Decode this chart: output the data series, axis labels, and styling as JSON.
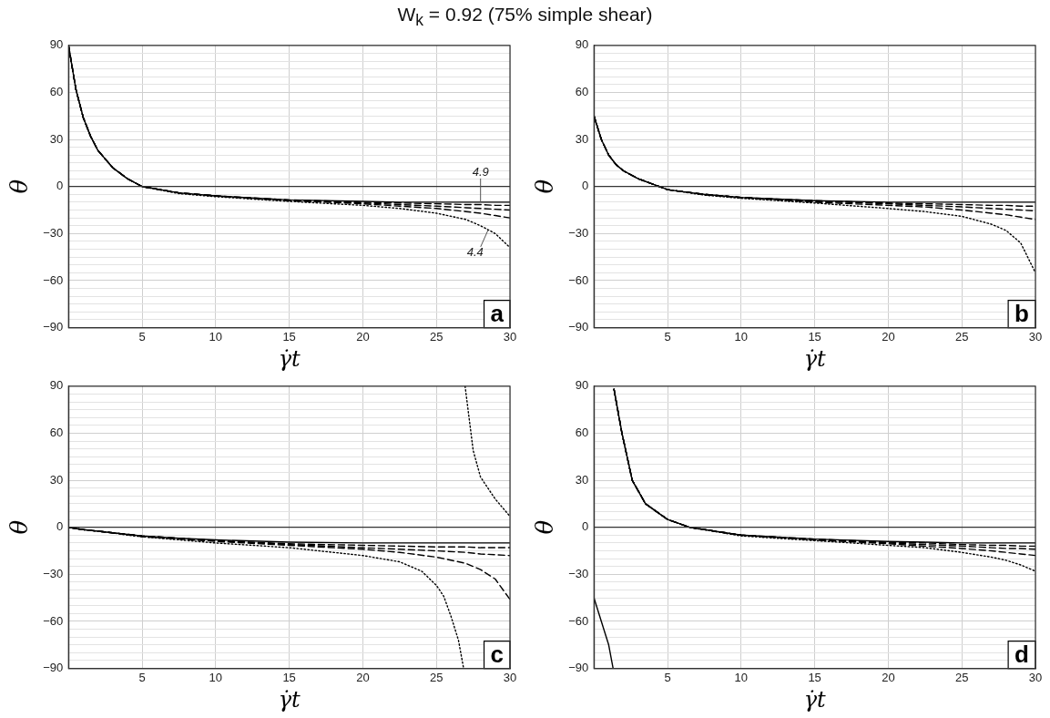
{
  "chart_data": [
    {
      "type": "line",
      "title": "W$_{k}$ = 0.92 (75% simple shear)",
      "xlabel": "γ̇t",
      "ylabel": "θ",
      "xlim": [
        0,
        30
      ],
      "xticks": [
        5,
        10,
        15,
        20,
        25,
        30
      ],
      "ylim": [
        -90,
        90
      ],
      "yticks": [
        {
          "value": -90,
          "label": "−90"
        },
        {
          "value": -85,
          "label": null
        },
        {
          "value": -80,
          "label": null
        },
        {
          "value": -75,
          "label": null
        },
        {
          "value": -70,
          "label": null
        },
        {
          "value": -65,
          "label": null
        },
        {
          "value": -60,
          "label": "−60"
        },
        {
          "value": -55,
          "label": null
        },
        {
          "value": -50,
          "label": null
        },
        {
          "value": -45,
          "label": null
        },
        {
          "value": -40,
          "label": null
        },
        {
          "value": -35,
          "label": null
        },
        {
          "value": -30,
          "label": "−30"
        },
        {
          "value": -25,
          "label": null
        },
        {
          "value": -20,
          "label": null
        },
        {
          "value": -15,
          "label": null
        },
        {
          "value": -10,
          "label": null
        },
        {
          "value": -5,
          "label": null
        },
        0,
        {
          "value": 5,
          "label": null
        },
        {
          "value": 10,
          "label": null
        },
        {
          "value": 15,
          "label": null
        },
        {
          "value": 20,
          "label": null
        },
        {
          "value": 25,
          "label": null
        },
        30,
        {
          "value": 35,
          "label": null
        },
        {
          "value": 40,
          "label": null
        },
        {
          "value": 45,
          "label": null
        },
        {
          "value": 50,
          "label": null
        },
        {
          "value": 55,
          "label": null
        },
        60,
        {
          "value": 65,
          "label": null
        },
        {
          "value": 70,
          "label": null
        },
        {
          "value": 75,
          "label": null
        },
        {
          "value": 80,
          "label": null
        },
        {
          "value": 85,
          "label": null
        },
        90
      ],
      "grid": true,
      "legend": false,
      "marker": "none",
      "ref_lines": [
        {
          "axis": "y",
          "value": 0
        }
      ],
      "annotations": [
        "a",
        {
          "text": "4.9",
          "x": 28,
          "y": -10
        },
        {
          "text": "4.4",
          "x": 28.5,
          "y": -28
        }
      ],
      "x": [
        0,
        0.5,
        1,
        1.5,
        2,
        3,
        4,
        5,
        7.5,
        10,
        15,
        20,
        22.5,
        25,
        27,
        28,
        29,
        30
      ],
      "series": [
        {
          "color": "#000000",
          "line_style": "solid",
          "values": [
            90,
            62,
            44,
            32,
            23,
            12,
            5,
            0,
            -4,
            -6,
            -8.5,
            -9.5,
            -10,
            -10,
            -10,
            -10,
            -10,
            -10
          ]
        },
        {
          "color": "#000000",
          "line_style": "dashed",
          "values": [
            90,
            62,
            44,
            32,
            23,
            12,
            5,
            0,
            -4,
            -6,
            -8.5,
            -10,
            -10.5,
            -11,
            -11.5,
            -11.5,
            -12,
            -12
          ]
        },
        {
          "color": "#000000",
          "line_style": "dashed",
          "values": [
            90,
            62,
            44,
            32,
            23,
            12,
            5,
            0,
            -4,
            -6,
            -9,
            -10.5,
            -11.5,
            -12.5,
            -13.5,
            -14,
            -14.5,
            -15
          ]
        },
        {
          "color": "#000000",
          "line_style": "dashed",
          "values": [
            90,
            62,
            44,
            32,
            23,
            12,
            5,
            0,
            -4,
            -6,
            -9,
            -11,
            -12.5,
            -14,
            -16,
            -17,
            -18.5,
            -20
          ]
        },
        {
          "color": "#000000",
          "line_style": "dotted",
          "values": [
            90,
            62,
            44,
            32,
            23,
            12,
            5,
            0,
            -4.5,
            -6.5,
            -9.5,
            -12,
            -14,
            -17,
            -21,
            -25,
            -30,
            -39
          ]
        }
      ]
    },
    {
      "type": "line",
      "xlabel": "γ̇t",
      "ylabel": "θ",
      "xlim": [
        0,
        30
      ],
      "xticks": [
        5,
        10,
        15,
        20,
        25,
        30
      ],
      "ylim": [
        -90,
        90
      ],
      "yticks": [
        {
          "value": -90,
          "label": "−90"
        },
        {
          "value": -85,
          "label": null
        },
        {
          "value": -80,
          "label": null
        },
        {
          "value": -75,
          "label": null
        },
        {
          "value": -70,
          "label": null
        },
        {
          "value": -65,
          "label": null
        },
        {
          "value": -60,
          "label": "−60"
        },
        {
          "value": -55,
          "label": null
        },
        {
          "value": -50,
          "label": null
        },
        {
          "value": -45,
          "label": null
        },
        {
          "value": -40,
          "label": null
        },
        {
          "value": -35,
          "label": null
        },
        {
          "value": -30,
          "label": "−30"
        },
        {
          "value": -25,
          "label": null
        },
        {
          "value": -20,
          "label": null
        },
        {
          "value": -15,
          "label": null
        },
        {
          "value": -10,
          "label": null
        },
        {
          "value": -5,
          "label": null
        },
        0,
        {
          "value": 5,
          "label": null
        },
        {
          "value": 10,
          "label": null
        },
        {
          "value": 15,
          "label": null
        },
        {
          "value": 20,
          "label": null
        },
        {
          "value": 25,
          "label": null
        },
        30,
        {
          "value": 35,
          "label": null
        },
        {
          "value": 40,
          "label": null
        },
        {
          "value": 45,
          "label": null
        },
        {
          "value": 50,
          "label": null
        },
        {
          "value": 55,
          "label": null
        },
        60,
        {
          "value": 65,
          "label": null
        },
        {
          "value": 70,
          "label": null
        },
        {
          "value": 75,
          "label": null
        },
        {
          "value": 80,
          "label": null
        },
        {
          "value": 85,
          "label": null
        },
        90
      ],
      "grid": true,
      "legend": false,
      "marker": "none",
      "ref_lines": [
        {
          "axis": "y",
          "value": 0
        }
      ],
      "annotations": [
        "b"
      ],
      "x": [
        0,
        0.5,
        1,
        1.5,
        2,
        3,
        4,
        5,
        7.5,
        10,
        15,
        20,
        22.5,
        25,
        27,
        28,
        29,
        30
      ],
      "series": [
        {
          "color": "#000000",
          "line_style": "solid",
          "values": [
            45,
            30,
            20,
            14,
            10,
            5,
            1.5,
            -2,
            -5,
            -7,
            -9,
            -10,
            -10,
            -10,
            -10,
            -10,
            -10,
            -10
          ]
        },
        {
          "color": "#000000",
          "line_style": "dashed",
          "values": [
            45,
            30,
            20,
            14,
            10,
            5,
            1.5,
            -2,
            -5,
            -7,
            -9,
            -10.5,
            -11,
            -11.5,
            -12,
            -12,
            -12.5,
            -12.5
          ]
        },
        {
          "color": "#000000",
          "line_style": "dashed",
          "values": [
            45,
            30,
            20,
            14,
            10,
            5,
            1.5,
            -2,
            -5,
            -7,
            -9.5,
            -11,
            -12,
            -13,
            -14,
            -14.5,
            -15,
            -15.5
          ]
        },
        {
          "color": "#000000",
          "line_style": "dashed",
          "values": [
            45,
            30,
            20,
            14,
            10,
            5,
            1.5,
            -2,
            -5,
            -7,
            -10,
            -12,
            -13,
            -15,
            -17,
            -18,
            -19.5,
            -21
          ]
        },
        {
          "color": "#000000",
          "line_style": "dotted",
          "values": [
            45,
            30,
            20,
            14,
            10,
            5,
            1.5,
            -2,
            -5.5,
            -7.5,
            -10.5,
            -14,
            -16,
            -19,
            -24,
            -28,
            -36,
            -55
          ]
        }
      ]
    },
    {
      "type": "line",
      "xlabel": "γ̇t",
      "ylabel": "θ",
      "xlim": [
        0,
        30
      ],
      "xticks": [
        5,
        10,
        15,
        20,
        25,
        30
      ],
      "ylim": [
        -90,
        90
      ],
      "yticks": [
        {
          "value": -90,
          "label": "−90"
        },
        {
          "value": -85,
          "label": null
        },
        {
          "value": -80,
          "label": null
        },
        {
          "value": -75,
          "label": null
        },
        {
          "value": -70,
          "label": null
        },
        {
          "value": -65,
          "label": null
        },
        {
          "value": -60,
          "label": "−60"
        },
        {
          "value": -55,
          "label": null
        },
        {
          "value": -50,
          "label": null
        },
        {
          "value": -45,
          "label": null
        },
        {
          "value": -40,
          "label": null
        },
        {
          "value": -35,
          "label": null
        },
        {
          "value": -30,
          "label": "−30"
        },
        {
          "value": -25,
          "label": null
        },
        {
          "value": -20,
          "label": null
        },
        {
          "value": -15,
          "label": null
        },
        {
          "value": -10,
          "label": null
        },
        {
          "value": -5,
          "label": null
        },
        0,
        {
          "value": 5,
          "label": null
        },
        {
          "value": 10,
          "label": null
        },
        {
          "value": 15,
          "label": null
        },
        {
          "value": 20,
          "label": null
        },
        {
          "value": 25,
          "label": null
        },
        30,
        {
          "value": 35,
          "label": null
        },
        {
          "value": 40,
          "label": null
        },
        {
          "value": 45,
          "label": null
        },
        {
          "value": 50,
          "label": null
        },
        {
          "value": 55,
          "label": null
        },
        60,
        {
          "value": 65,
          "label": null
        },
        {
          "value": 70,
          "label": null
        },
        {
          "value": 75,
          "label": null
        },
        {
          "value": 80,
          "label": null
        },
        {
          "value": 85,
          "label": null
        },
        90
      ],
      "grid": true,
      "legend": false,
      "marker": "none",
      "ref_lines": [
        {
          "axis": "y",
          "value": 0
        }
      ],
      "annotations": [
        "c"
      ],
      "x": [
        0,
        1,
        2,
        3,
        4,
        5,
        7.5,
        10,
        15,
        20,
        22.5,
        25,
        27,
        28,
        29,
        30
      ],
      "series": [
        {
          "color": "#000000",
          "line_style": "solid",
          "values": [
            0,
            -1.5,
            -2.5,
            -3.5,
            -4.5,
            -5.5,
            -7,
            -8,
            -9.5,
            -10,
            -10,
            -10,
            -10,
            -10,
            -10,
            -10
          ]
        },
        {
          "color": "#000000",
          "line_style": "dashed",
          "values": [
            0,
            -1.5,
            -2.5,
            -3.5,
            -4.5,
            -5.5,
            -7,
            -8.5,
            -10.5,
            -11.5,
            -12,
            -12.5,
            -12.5,
            -13,
            -13,
            -13
          ]
        },
        {
          "color": "#000000",
          "line_style": "dashed",
          "values": [
            0,
            -1.5,
            -2.5,
            -3.5,
            -4.5,
            -5.5,
            -7,
            -8.5,
            -11,
            -13,
            -14,
            -15,
            -16,
            -17,
            -17.5,
            -18
          ]
        },
        {
          "color": "#000000",
          "line_style": "dashed",
          "values": [
            0,
            -1.5,
            -2.5,
            -3.5,
            -4.5,
            -6,
            -7.5,
            -9,
            -11.5,
            -14,
            -16,
            -19,
            -23,
            -27,
            -33,
            -46
          ]
        },
        {
          "color": "#000000",
          "line_style": "dotted",
          "x": [
            0,
            1,
            2,
            3,
            4,
            5,
            7.5,
            10,
            15,
            20,
            22.5,
            24,
            25,
            25.5,
            26,
            26.5,
            26.85,
            26.9,
            26.95,
            27.5,
            28,
            29,
            30
          ],
          "values": [
            0,
            -1.5,
            -2.5,
            -3.5,
            -5,
            -6,
            -8,
            -10,
            -13,
            -18,
            -22,
            -28,
            -37,
            -44,
            -57,
            -72,
            -90,
            null,
            90,
            49,
            32,
            18,
            7
          ]
        }
      ]
    },
    {
      "type": "line",
      "xlabel": "γ̇t",
      "ylabel": "θ",
      "xlim": [
        0,
        30
      ],
      "xticks": [
        5,
        10,
        15,
        20,
        25,
        30
      ],
      "ylim": [
        -90,
        90
      ],
      "yticks": [
        {
          "value": -90,
          "label": "−90"
        },
        {
          "value": -85,
          "label": null
        },
        {
          "value": -80,
          "label": null
        },
        {
          "value": -75,
          "label": null
        },
        {
          "value": -70,
          "label": null
        },
        {
          "value": -65,
          "label": null
        },
        {
          "value": -60,
          "label": "−60"
        },
        {
          "value": -55,
          "label": null
        },
        {
          "value": -50,
          "label": null
        },
        {
          "value": -45,
          "label": null
        },
        {
          "value": -40,
          "label": null
        },
        {
          "value": -35,
          "label": null
        },
        {
          "value": -30,
          "label": "−30"
        },
        {
          "value": -25,
          "label": null
        },
        {
          "value": -20,
          "label": null
        },
        {
          "value": -15,
          "label": null
        },
        {
          "value": -10,
          "label": null
        },
        {
          "value": -5,
          "label": null
        },
        0,
        {
          "value": 5,
          "label": null
        },
        {
          "value": 10,
          "label": null
        },
        {
          "value": 15,
          "label": null
        },
        {
          "value": 20,
          "label": null
        },
        {
          "value": 25,
          "label": null
        },
        30,
        {
          "value": 35,
          "label": null
        },
        {
          "value": 40,
          "label": null
        },
        {
          "value": 45,
          "label": null
        },
        {
          "value": 50,
          "label": null
        },
        {
          "value": 55,
          "label": null
        },
        60,
        {
          "value": 65,
          "label": null
        },
        {
          "value": 70,
          "label": null
        },
        {
          "value": 75,
          "label": null
        },
        {
          "value": 80,
          "label": null
        },
        {
          "value": 85,
          "label": null
        },
        90
      ],
      "grid": true,
      "legend": false,
      "marker": "none",
      "ref_lines": [
        {
          "axis": "y",
          "value": 0
        }
      ],
      "annotations": [
        "d"
      ],
      "x": [
        1.36,
        1.9,
        2.6,
        3.5,
        5,
        6.5,
        10,
        15,
        20,
        22.5,
        25,
        27,
        28,
        29,
        30
      ],
      "series": [
        {
          "color": "#000000",
          "line_style": "solid",
          "x": [
            0,
            0.5,
            1,
            1.3
          ],
          "values": [
            -45,
            -60,
            -75,
            -90
          ]
        },
        {
          "color": "#000000",
          "line_style": "solid",
          "values": [
            88,
            60,
            30,
            15,
            5,
            0,
            -5,
            -7.5,
            -9,
            -9.5,
            -10,
            -10,
            -10,
            -10,
            -10
          ]
        },
        {
          "color": "#000000",
          "line_style": "dashed",
          "values": [
            88,
            60,
            30,
            15,
            5,
            0,
            -5,
            -7.5,
            -9.5,
            -10,
            -11,
            -11.5,
            -11.5,
            -12,
            -12
          ]
        },
        {
          "color": "#000000",
          "line_style": "dashed",
          "values": [
            88,
            60,
            30,
            15,
            5,
            0,
            -5,
            -8,
            -10,
            -11,
            -12,
            -13,
            -13.5,
            -13.5,
            -14
          ]
        },
        {
          "color": "#000000",
          "line_style": "dashed",
          "values": [
            88,
            60,
            30,
            15,
            5,
            0,
            -5,
            -8,
            -10.5,
            -12,
            -13.5,
            -15,
            -16,
            -17,
            -18
          ]
        },
        {
          "color": "#000000",
          "line_style": "dotted",
          "values": [
            88,
            60,
            30,
            15,
            5,
            0,
            -5.5,
            -8.5,
            -11.5,
            -13,
            -16,
            -19,
            -21,
            -24,
            -28
          ]
        }
      ]
    }
  ]
}
